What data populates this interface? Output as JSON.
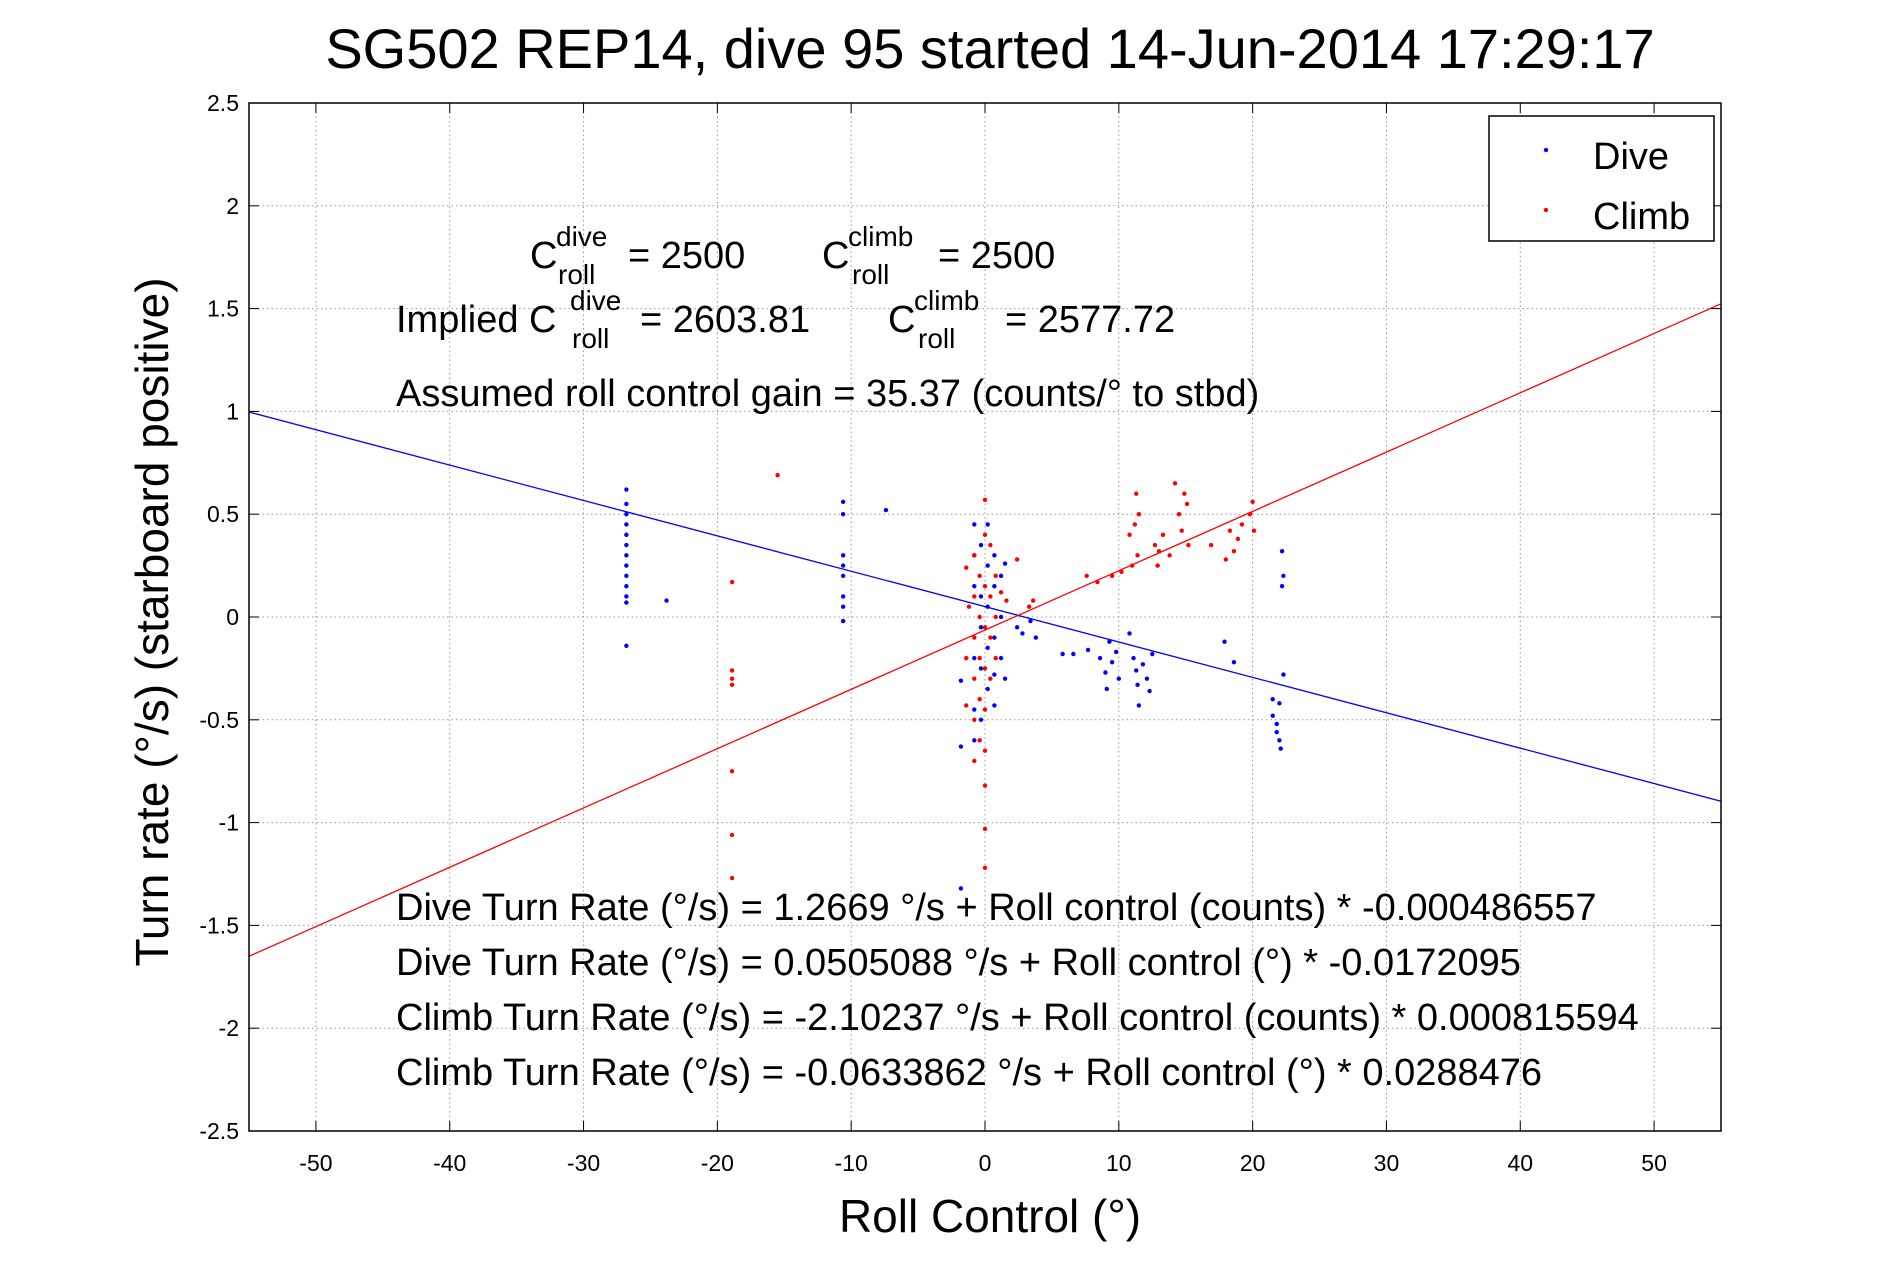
{
  "chart_data": {
    "type": "scatter",
    "title": "SG502 REP14, dive 95 started 14-Jun-2014 17:29:17",
    "xlabel": "Roll Control (°)",
    "ylabel": "Turn rate (°/s) (starboard positive)",
    "xlim": [
      -55,
      55
    ],
    "ylim": [
      -2.5,
      2.5
    ],
    "xticks": [
      -50,
      -40,
      -30,
      -20,
      -10,
      0,
      10,
      20,
      30,
      40,
      50
    ],
    "yticks": [
      -2.5,
      -2,
      -1.5,
      -1,
      -0.5,
      0,
      0.5,
      1,
      1.5,
      2,
      2.5
    ],
    "ytick_labels": [
      "-2.5",
      "-2",
      "-1.5",
      "-1",
      "-0.5",
      "0",
      "0.5",
      "1",
      "1.5",
      "2",
      "2.5"
    ],
    "grid": true,
    "legend": {
      "position": "top-right",
      "entries": [
        "Dive",
        "Climb"
      ]
    },
    "colors": {
      "dive": "#0000ff",
      "climb": "#ff0000"
    },
    "series": [
      {
        "name": "Dive",
        "color": "#0000ff",
        "points": [
          [
            -26.8,
            0.62
          ],
          [
            -26.8,
            0.55
          ],
          [
            -26.8,
            0.5
          ],
          [
            -26.8,
            0.45
          ],
          [
            -26.8,
            0.4
          ],
          [
            -26.8,
            0.35
          ],
          [
            -26.8,
            0.3
          ],
          [
            -26.8,
            0.25
          ],
          [
            -26.8,
            0.2
          ],
          [
            -26.8,
            0.15
          ],
          [
            -26.8,
            0.1
          ],
          [
            -26.8,
            0.07
          ],
          [
            -26.8,
            -0.14
          ],
          [
            -23.8,
            0.08
          ],
          [
            -10.6,
            0.56
          ],
          [
            -10.6,
            0.5
          ],
          [
            -10.6,
            0.3
          ],
          [
            -10.6,
            0.25
          ],
          [
            -10.6,
            0.2
          ],
          [
            -10.6,
            0.1
          ],
          [
            -10.6,
            0.05
          ],
          [
            -10.6,
            -0.02
          ],
          [
            -7.4,
            0.52
          ],
          [
            -1.8,
            -0.63
          ],
          [
            -1.8,
            -0.31
          ],
          [
            -1.8,
            -1.32
          ],
          [
            -0.8,
            0.45
          ],
          [
            -0.8,
            0.3
          ],
          [
            -0.8,
            0.15
          ],
          [
            -0.8,
            -0.2
          ],
          [
            -0.8,
            -0.45
          ],
          [
            -0.8,
            -0.6
          ],
          [
            -0.3,
            0.35
          ],
          [
            -0.3,
            0.1
          ],
          [
            -0.3,
            -0.05
          ],
          [
            -0.3,
            -0.25
          ],
          [
            -0.3,
            -0.5
          ],
          [
            0.2,
            0.45
          ],
          [
            0.2,
            0.25
          ],
          [
            0.2,
            0.05
          ],
          [
            0.2,
            -0.15
          ],
          [
            0.2,
            -0.35
          ],
          [
            0.7,
            0.3
          ],
          [
            0.7,
            0.15
          ],
          [
            0.7,
            -0.1
          ],
          [
            0.7,
            -0.28
          ],
          [
            0.7,
            -0.43
          ],
          [
            1.2,
            0.2
          ],
          [
            1.2,
            0.0
          ],
          [
            1.2,
            -0.2
          ],
          [
            1.5,
            -0.3
          ],
          [
            1.5,
            0.26
          ],
          [
            2.4,
            -0.05
          ],
          [
            2.8,
            -0.08
          ],
          [
            3.4,
            -0.02
          ],
          [
            3.8,
            -0.1
          ],
          [
            5.8,
            -0.18
          ],
          [
            6.6,
            -0.18
          ],
          [
            7.7,
            -0.16
          ],
          [
            8.6,
            -0.2
          ],
          [
            9.0,
            -0.27
          ],
          [
            9.1,
            -0.35
          ],
          [
            9.3,
            -0.12
          ],
          [
            9.5,
            -0.22
          ],
          [
            9.8,
            -0.17
          ],
          [
            10.0,
            -0.3
          ],
          [
            10.8,
            -0.08
          ],
          [
            11.1,
            -0.2
          ],
          [
            11.3,
            -0.26
          ],
          [
            11.4,
            -0.33
          ],
          [
            11.5,
            -0.43
          ],
          [
            11.8,
            -0.23
          ],
          [
            12.1,
            -0.3
          ],
          [
            12.3,
            -0.36
          ],
          [
            12.5,
            -0.18
          ],
          [
            17.9,
            -0.12
          ],
          [
            18.6,
            -0.22
          ],
          [
            21.5,
            -0.4
          ],
          [
            21.5,
            -0.48
          ],
          [
            21.8,
            -0.52
          ],
          [
            21.8,
            -0.56
          ],
          [
            22.0,
            -0.42
          ],
          [
            22.0,
            -0.6
          ],
          [
            22.1,
            -0.64
          ],
          [
            22.2,
            0.15
          ],
          [
            22.2,
            0.32
          ],
          [
            22.3,
            -0.28
          ],
          [
            22.3,
            0.2
          ]
        ]
      },
      {
        "name": "Climb",
        "color": "#ff0000",
        "points": [
          [
            -15.5,
            0.69
          ],
          [
            -18.9,
            0.17
          ],
          [
            -18.9,
            -0.26
          ],
          [
            -18.9,
            -0.3
          ],
          [
            -18.9,
            -0.33
          ],
          [
            -18.9,
            -0.75
          ],
          [
            -18.9,
            -1.06
          ],
          [
            -18.9,
            -1.27
          ],
          [
            -1.4,
            0.24
          ],
          [
            -1.4,
            -0.43
          ],
          [
            -1.4,
            -0.2
          ],
          [
            -1.2,
            0.05
          ],
          [
            -0.8,
            0.3
          ],
          [
            -0.8,
            0.1
          ],
          [
            -0.8,
            -0.1
          ],
          [
            -0.8,
            -0.3
          ],
          [
            -0.8,
            -0.5
          ],
          [
            -0.8,
            -0.7
          ],
          [
            -0.4,
            0.2
          ],
          [
            -0.4,
            0.0
          ],
          [
            -0.4,
            -0.2
          ],
          [
            -0.4,
            -0.4
          ],
          [
            -0.4,
            -0.6
          ],
          [
            0.0,
            0.57
          ],
          [
            0.0,
            0.4
          ],
          [
            0.0,
            0.15
          ],
          [
            0.0,
            -0.05
          ],
          [
            0.0,
            -0.25
          ],
          [
            0.0,
            -0.45
          ],
          [
            0.0,
            -0.65
          ],
          [
            0.0,
            -0.82
          ],
          [
            0.0,
            -1.03
          ],
          [
            0.0,
            -1.22
          ],
          [
            0.4,
            0.35
          ],
          [
            0.4,
            0.1
          ],
          [
            0.4,
            -0.1
          ],
          [
            0.4,
            -0.3
          ],
          [
            0.8,
            0.2
          ],
          [
            0.8,
            0.0
          ],
          [
            0.8,
            -0.2
          ],
          [
            1.2,
            0.12
          ],
          [
            1.6,
            0.08
          ],
          [
            2.4,
            0.28
          ],
          [
            3.3,
            0.05
          ],
          [
            3.6,
            0.08
          ],
          [
            7.6,
            0.2
          ],
          [
            8.4,
            0.17
          ],
          [
            9.5,
            0.2
          ],
          [
            10.2,
            0.22
          ],
          [
            10.8,
            0.4
          ],
          [
            11.0,
            0.25
          ],
          [
            11.2,
            0.45
          ],
          [
            11.3,
            0.6
          ],
          [
            11.4,
            0.3
          ],
          [
            11.5,
            0.5
          ],
          [
            12.7,
            0.35
          ],
          [
            12.9,
            0.25
          ],
          [
            13.0,
            0.32
          ],
          [
            13.3,
            0.4
          ],
          [
            13.8,
            0.3
          ],
          [
            14.2,
            0.65
          ],
          [
            14.5,
            0.5
          ],
          [
            14.7,
            0.42
          ],
          [
            14.9,
            0.6
          ],
          [
            15.1,
            0.55
          ],
          [
            15.2,
            0.35
          ],
          [
            16.9,
            0.35
          ],
          [
            18.0,
            0.28
          ],
          [
            18.3,
            0.42
          ],
          [
            18.6,
            0.32
          ],
          [
            18.9,
            0.38
          ],
          [
            19.2,
            0.45
          ],
          [
            19.8,
            0.5
          ],
          [
            20.0,
            0.56
          ],
          [
            20.1,
            0.42
          ]
        ]
      }
    ],
    "fit_lines": [
      {
        "name": "Dive",
        "intercept": 0.0505088,
        "slope": -0.0172095
      },
      {
        "name": "Climb",
        "intercept": -0.0633862,
        "slope": 0.0288476
      }
    ],
    "annotations": {
      "c_dive_prefix": "C",
      "c_dive_sup": "dive",
      "c_dive_sub": "roll",
      "c_dive_value": "= 2500",
      "c_climb_prefix": "C",
      "c_climb_sup": "climb",
      "c_climb_sub": "roll",
      "c_climb_value": "= 2500",
      "implied_label": "Implied C",
      "implied_dive_sup": "dive",
      "implied_dive_sub": "roll",
      "implied_dive_value": "= 2603.81",
      "implied_climb_prefix": "C",
      "implied_climb_sup": "climb",
      "implied_climb_sub": "roll",
      "implied_climb_value": "= 2577.72",
      "gain": "Assumed roll control gain = 35.37 (counts/° to stbd)",
      "eq1": "Dive Turn Rate (°/s) = 1.2669 °/s + Roll control (counts) * -0.000486557",
      "eq2": "Dive Turn Rate (°/s) = 0.0505088 °/s + Roll control (°) * -0.0172095",
      "eq3": "Climb Turn Rate (°/s) = -2.10237 °/s + Roll control (counts) * 0.000815594",
      "eq4": "Climb Turn Rate (°/s) = -0.0633862 °/s + Roll control (°) * 0.0288476"
    }
  }
}
